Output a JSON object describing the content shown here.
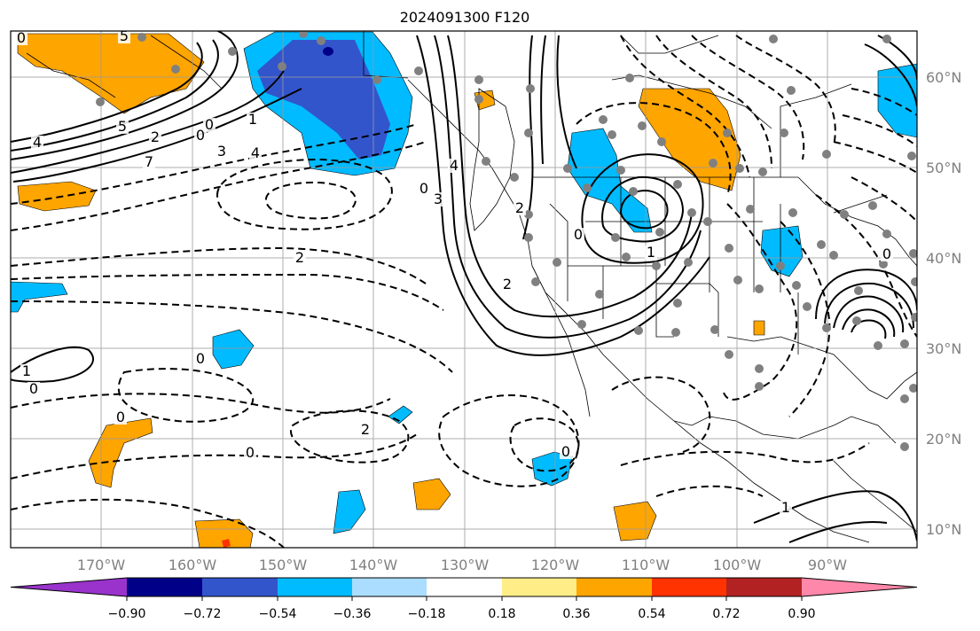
{
  "title": "2024091300 F120",
  "lon_labels": [
    "170°W",
    "160°W",
    "150°W",
    "140°W",
    "130°W",
    "120°W",
    "110°W",
    "100°W",
    "90°W"
  ],
  "lat_labels": [
    "60°N",
    "50°N",
    "40°N",
    "30°N",
    "20°N",
    "10°N"
  ],
  "colorbar": {
    "ticks": [
      "−0.90",
      "−0.72",
      "−0.54",
      "−0.36",
      "−0.18",
      "0.18",
      "0.36",
      "0.54",
      "0.72",
      "0.90"
    ],
    "colors": [
      "#9933cc",
      "#000088",
      "#3355cc",
      "#00bbff",
      "#aaddff",
      "#ffffff",
      "#ffee88",
      "#ffa500",
      "#ff3300",
      "#b22222",
      "#ff88aa"
    ]
  },
  "contour_labels": [
    "0",
    "5",
    "4",
    "7",
    "5",
    "2",
    "0",
    "3",
    "4",
    "1",
    "0",
    "2",
    "0",
    "3",
    "4",
    "2",
    "2",
    "0",
    "1",
    "0",
    "0",
    "1",
    "0",
    "0",
    "2",
    "0",
    "0",
    "1"
  ],
  "colors": {
    "map_frame": "#000000",
    "grid": "#999999",
    "axis_text": "#808080",
    "stations": "#808080"
  }
}
